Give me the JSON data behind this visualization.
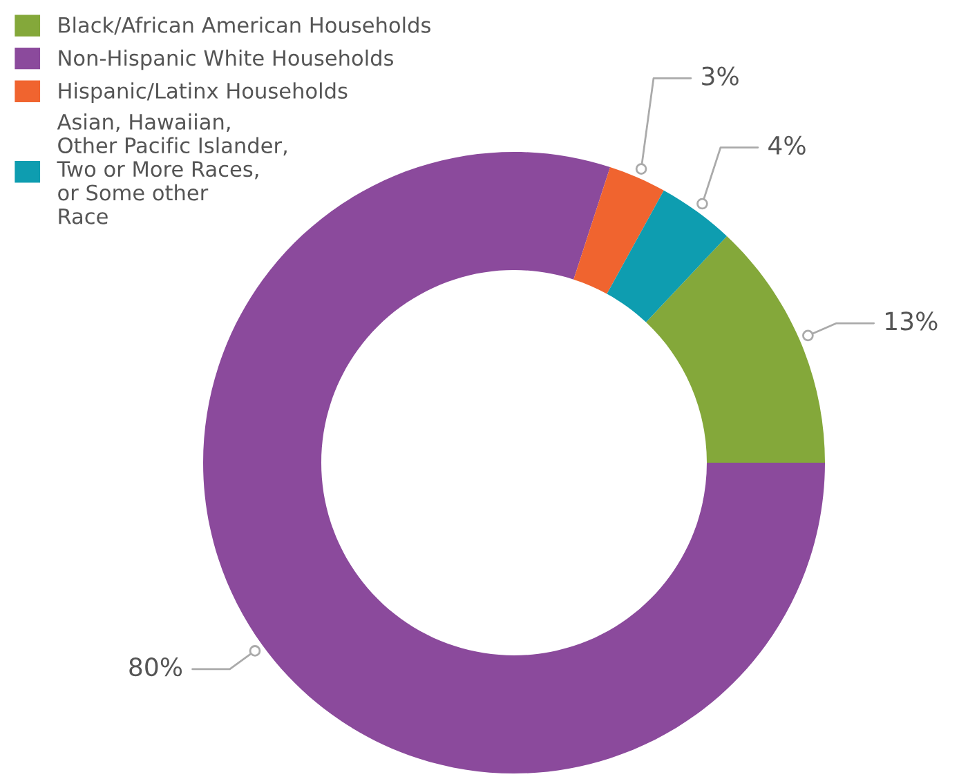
{
  "chart_data": {
    "type": "donut",
    "categories": [
      "Black/African American Households",
      "Non-Hispanic White Households",
      "Hispanic/Latinx Households",
      "Asian, Hawaiian,\nOther Pacific Islander,\nTwo or More Races,\nor Some other\nRace"
    ],
    "values": [
      13,
      80,
      3,
      4
    ],
    "colors": [
      "#84a83a",
      "#8b4a9c",
      "#f0642f",
      "#0e9db0"
    ],
    "legend": "top left",
    "value_labels": [
      "13%",
      "80%",
      "3%",
      "4%"
    ]
  }
}
